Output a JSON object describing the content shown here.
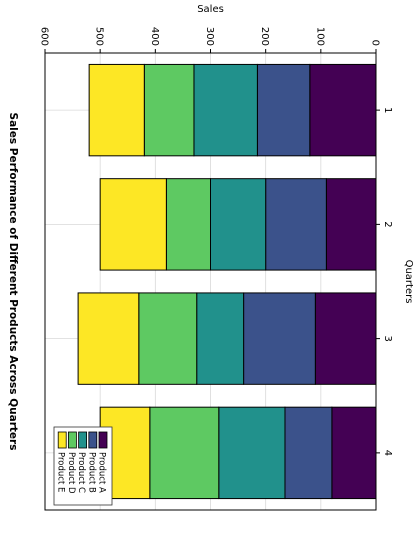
{
  "chart_data": {
    "type": "bar",
    "orientation": "horizontal",
    "stacked": true,
    "rotation": "figure rotated 90 degrees clockwise",
    "title": "Sales Performance of Different Products Across Quarters",
    "xlabel": "Sales",
    "ylabel": "Quarters",
    "xlim": [
      0,
      600
    ],
    "x_ticks": [
      "0",
      "100",
      "200",
      "300",
      "400",
      "500",
      "600"
    ],
    "categories": [
      "1",
      "2",
      "3",
      "4"
    ],
    "grid": true,
    "legend_position": "lower-right",
    "series": [
      {
        "name": "Product A",
        "color": "#440154",
        "values": [
          120,
          90,
          110,
          80
        ]
      },
      {
        "name": "Product B",
        "color": "#3b528b",
        "values": [
          95,
          110,
          130,
          85
        ]
      },
      {
        "name": "Product C",
        "color": "#21918c",
        "values": [
          115,
          100,
          85,
          120
        ]
      },
      {
        "name": "Product D",
        "color": "#5ec962",
        "values": [
          90,
          80,
          105,
          125
        ]
      },
      {
        "name": "Product E",
        "color": "#fde725",
        "values": [
          100,
          120,
          110,
          90
        ]
      }
    ]
  }
}
